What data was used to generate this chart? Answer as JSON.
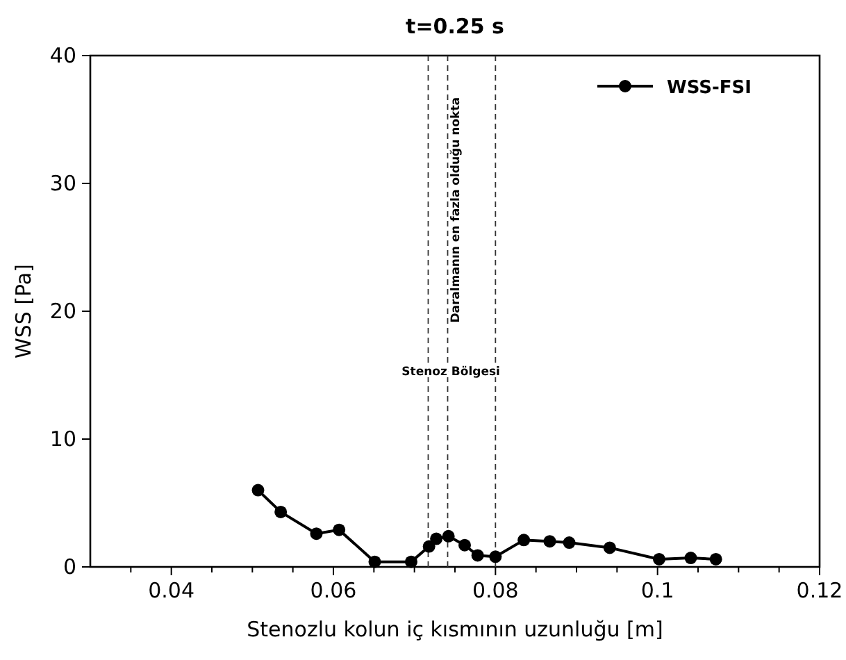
{
  "chart_data": {
    "type": "line",
    "title": "t=0.25 s",
    "xlabel": "Stenozlu kolun iç kısmının uzunluğu [m]",
    "ylabel": "WSS [Pa]",
    "x": [
      0.0507,
      0.0535,
      0.0579,
      0.0607,
      0.0651,
      0.0696,
      0.0718,
      0.0727,
      0.0742,
      0.0762,
      0.0778,
      0.08,
      0.0835,
      0.0867,
      0.0891,
      0.0941,
      0.1002,
      0.1041,
      0.1072
    ],
    "series": [
      {
        "name": "WSS-FSI",
        "color": "#000000",
        "values": [
          6.0,
          4.3,
          2.6,
          2.9,
          0.4,
          0.4,
          1.6,
          2.2,
          2.4,
          1.7,
          0.9,
          0.8,
          2.1,
          2.0,
          1.9,
          1.5,
          0.6,
          0.7,
          0.6
        ]
      }
    ],
    "xlim": [
      0.03,
      0.12
    ],
    "xticks": [
      {
        "value": 0.035,
        "label": null
      },
      0.04,
      {
        "value": 0.045,
        "label": null
      },
      {
        "value": 0.05,
        "label": null
      },
      {
        "value": 0.055,
        "label": null
      },
      0.06,
      {
        "value": 0.065,
        "label": null
      },
      {
        "value": 0.07,
        "label": null
      },
      {
        "value": 0.075,
        "label": null
      },
      0.08,
      {
        "value": 0.085,
        "label": null
      },
      {
        "value": 0.09,
        "label": null
      },
      {
        "value": 0.095,
        "label": null
      },
      0.1,
      {
        "value": 0.105,
        "label": null
      },
      {
        "value": 0.11,
        "label": null
      },
      {
        "value": 0.115,
        "label": null
      },
      0.12
    ],
    "ylim": [
      0,
      40
    ],
    "yticks": [
      0,
      10,
      20,
      30,
      40
    ],
    "ref_lines": [
      {
        "axis": "x",
        "value": 0.0717,
        "label": null,
        "line_style": "dashed"
      },
      {
        "axis": "x",
        "value": 0.0741,
        "label": "Daralmanın en fazla olduğu nokta",
        "line_style": "dashed"
      },
      {
        "axis": "x",
        "value": 0.08,
        "label": null,
        "line_style": "dashed"
      }
    ],
    "annotations": [
      {
        "text": "Stenoz Bölgesi",
        "x": 0.0745,
        "y": 15
      }
    ],
    "marker": "circle",
    "line_style": "solid",
    "legend": "top right",
    "grid": false
  }
}
